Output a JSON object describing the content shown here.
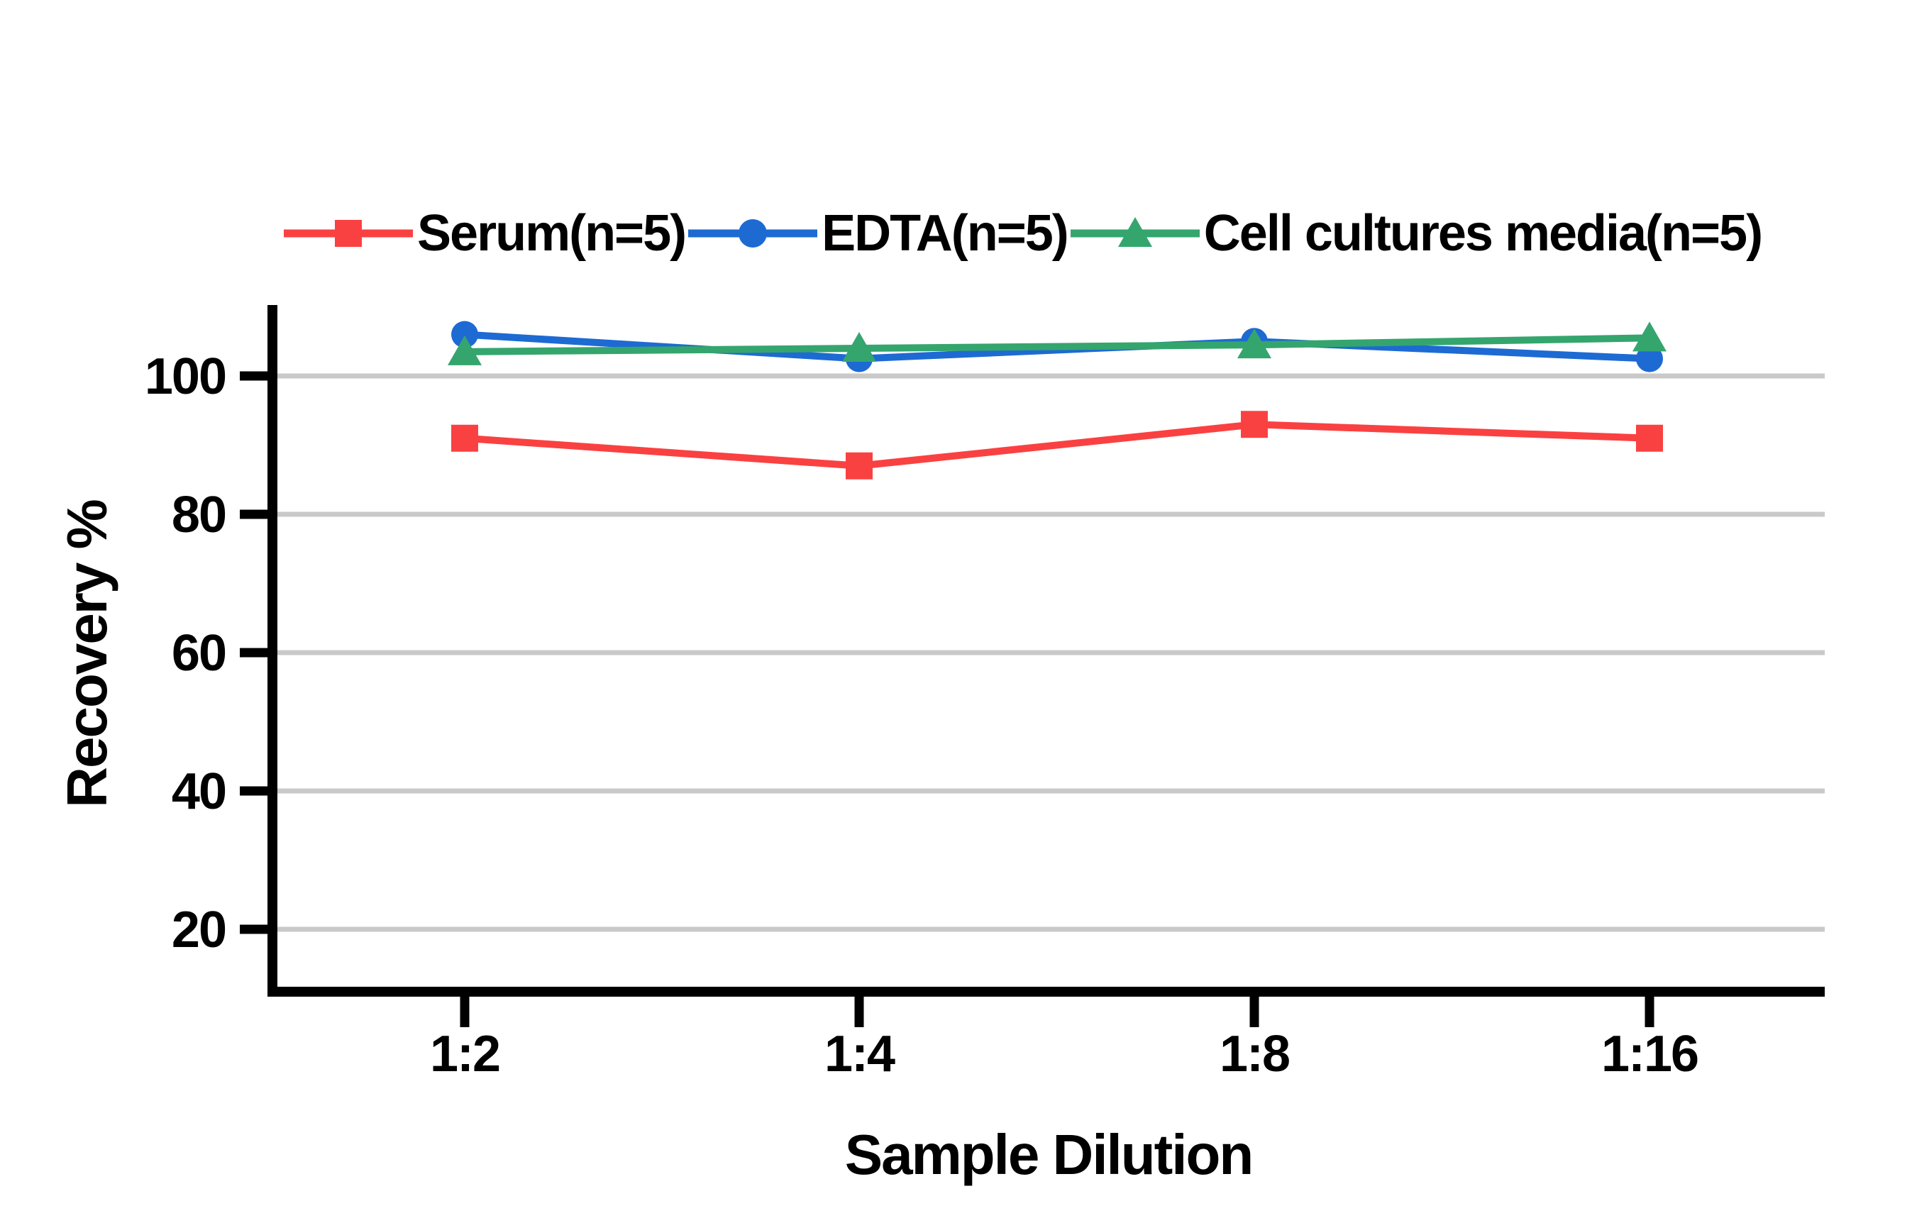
{
  "chart_data": {
    "type": "line",
    "title": "",
    "categories": [
      "1:2",
      "1:4",
      "1:8",
      "1:16"
    ],
    "xlabel": "Sample Dilution",
    "ylabel": "Recovery %",
    "yticks": [
      20,
      40,
      60,
      80,
      100
    ],
    "ylim": [
      11,
      110
    ],
    "grid": true,
    "legend_position": "top",
    "series": [
      {
        "name": "Serum(n=5)",
        "color": "#FA4141",
        "marker": "square",
        "values": [
          91,
          87,
          93,
          91
        ]
      },
      {
        "name": "EDTA(n=5)",
        "color": "#1D6AD3",
        "marker": "circle",
        "values": [
          106,
          102.5,
          105,
          102.5
        ]
      },
      {
        "name": "Cell cultures media(n=5)",
        "color": "#35A56E",
        "marker": "triangle",
        "values": [
          103.5,
          104,
          104.5,
          105.5
        ]
      }
    ],
    "colors": {
      "axis": "#000000",
      "grid": "#C9C9C9",
      "text": "#000000"
    }
  }
}
